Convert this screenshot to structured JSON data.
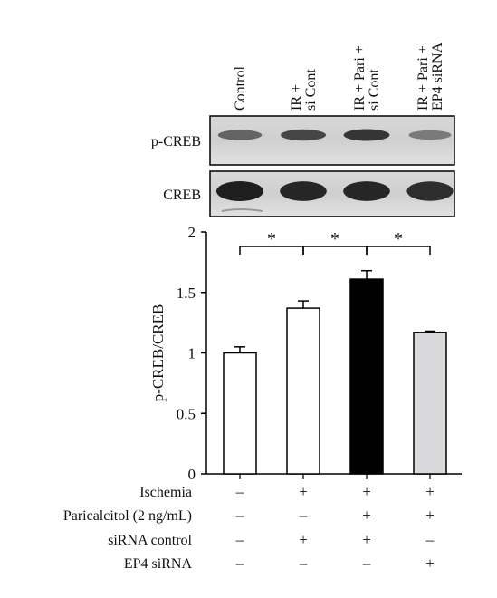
{
  "figure": {
    "lane_labels": [
      "Control",
      "IR +|si Cont",
      "IR + Pari +|si Cont",
      "IR + Pari +|EP4 siRNA"
    ],
    "blots": [
      {
        "label": "p-CREB",
        "band_intensity": [
          0.55,
          0.75,
          0.85,
          0.4
        ]
      },
      {
        "label": "CREB",
        "band_intensity": [
          1.0,
          0.95,
          0.95,
          0.9
        ]
      }
    ]
  },
  "chart_data": {
    "type": "bar",
    "categories": [
      "Control",
      "IR + si Cont",
      "IR + Pari + si Cont",
      "IR + Pari + EP4 siRNA"
    ],
    "values": [
      1.0,
      1.37,
      1.61,
      1.17
    ],
    "errors": [
      0.05,
      0.06,
      0.07,
      0.01
    ],
    "bar_colors": [
      "#ffffff",
      "#ffffff",
      "#000000",
      "#d9d9db"
    ],
    "ylabel": "p-CREB/CREB",
    "ylim": [
      0,
      2
    ],
    "yticks": [
      0,
      0.5,
      1,
      1.5,
      2
    ],
    "ytick_labels": [
      "0",
      "0.5",
      "1",
      "1.5",
      "2"
    ],
    "significance": [
      {
        "between": [
          0,
          1
        ],
        "label": "*"
      },
      {
        "between": [
          1,
          2
        ],
        "label": "*"
      },
      {
        "between": [
          2,
          3
        ],
        "label": "*"
      }
    ],
    "conditions": [
      {
        "label": "Ischemia",
        "signs": [
          "–",
          "+",
          "+",
          "+"
        ]
      },
      {
        "label": "Paricalcitol (2 ng/mL)",
        "signs": [
          "–",
          "–",
          "+",
          "+"
        ]
      },
      {
        "label": "siRNA control",
        "signs": [
          "–",
          "+",
          "+",
          "–"
        ]
      },
      {
        "label": "EP4 siRNA",
        "signs": [
          "–",
          "–",
          "–",
          "+"
        ]
      }
    ]
  }
}
